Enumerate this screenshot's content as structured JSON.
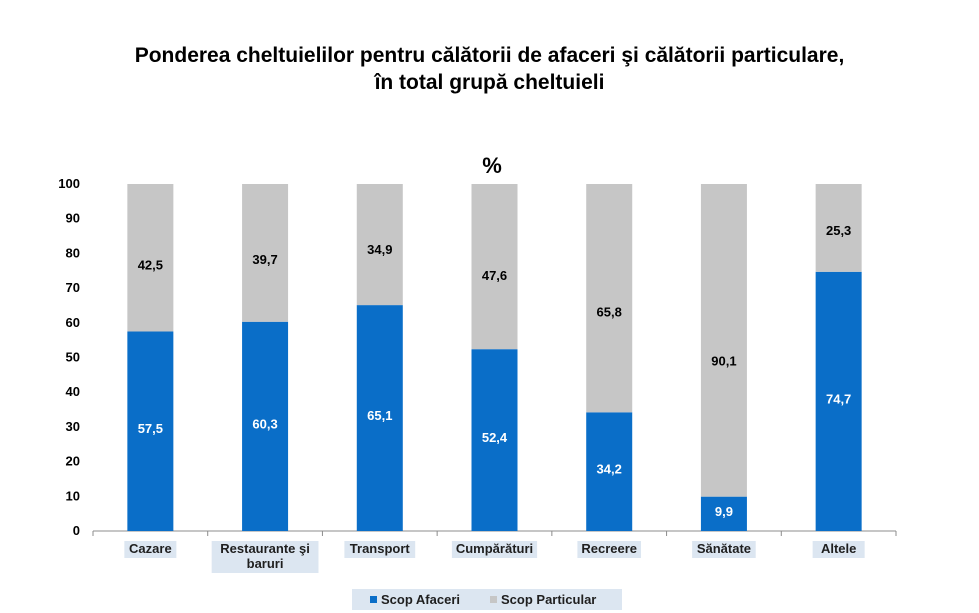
{
  "chart_data": {
    "type": "bar",
    "stacked": true,
    "title_lines": [
      "Ponderea cheltuielilor pentru călătorii de afaceri şi călătorii particulare,",
      "în total grupă cheltuieli"
    ],
    "unit_label": "%",
    "categories": [
      [
        "Cazare"
      ],
      [
        "Restaurante şi",
        "baruri"
      ],
      [
        "Transport"
      ],
      [
        "Cumpărături"
      ],
      [
        "Recreere"
      ],
      [
        "Sănătate"
      ],
      [
        "Altele"
      ]
    ],
    "series": [
      {
        "name": "Scop Afaceri",
        "color": "#0a6ec8",
        "label_color": "#ffffff",
        "values": [
          57.5,
          60.3,
          65.1,
          52.4,
          34.2,
          9.9,
          74.7
        ],
        "labels": [
          "57,5",
          "60,3",
          "65,1",
          "52,4",
          "34,2",
          "9,9",
          "74,7"
        ]
      },
      {
        "name": "Scop Particular",
        "color": "#c6c6c6",
        "label_color": "#000000",
        "values": [
          42.5,
          39.7,
          34.9,
          47.6,
          65.8,
          90.1,
          25.3
        ],
        "labels": [
          "42,5",
          "39,7",
          "34,9",
          "47,6",
          "65,8",
          "90,1",
          "25,3"
        ]
      }
    ],
    "yticks": [
      "0",
      "10",
      "20",
      "30",
      "40",
      "50",
      "60",
      "70",
      "80",
      "90",
      "100"
    ],
    "ylim": [
      0,
      100
    ],
    "grid": false,
    "legend_position": "bottom",
    "category_label_highlight": "#dce6f1",
    "legend_background": "#dce6f1"
  }
}
